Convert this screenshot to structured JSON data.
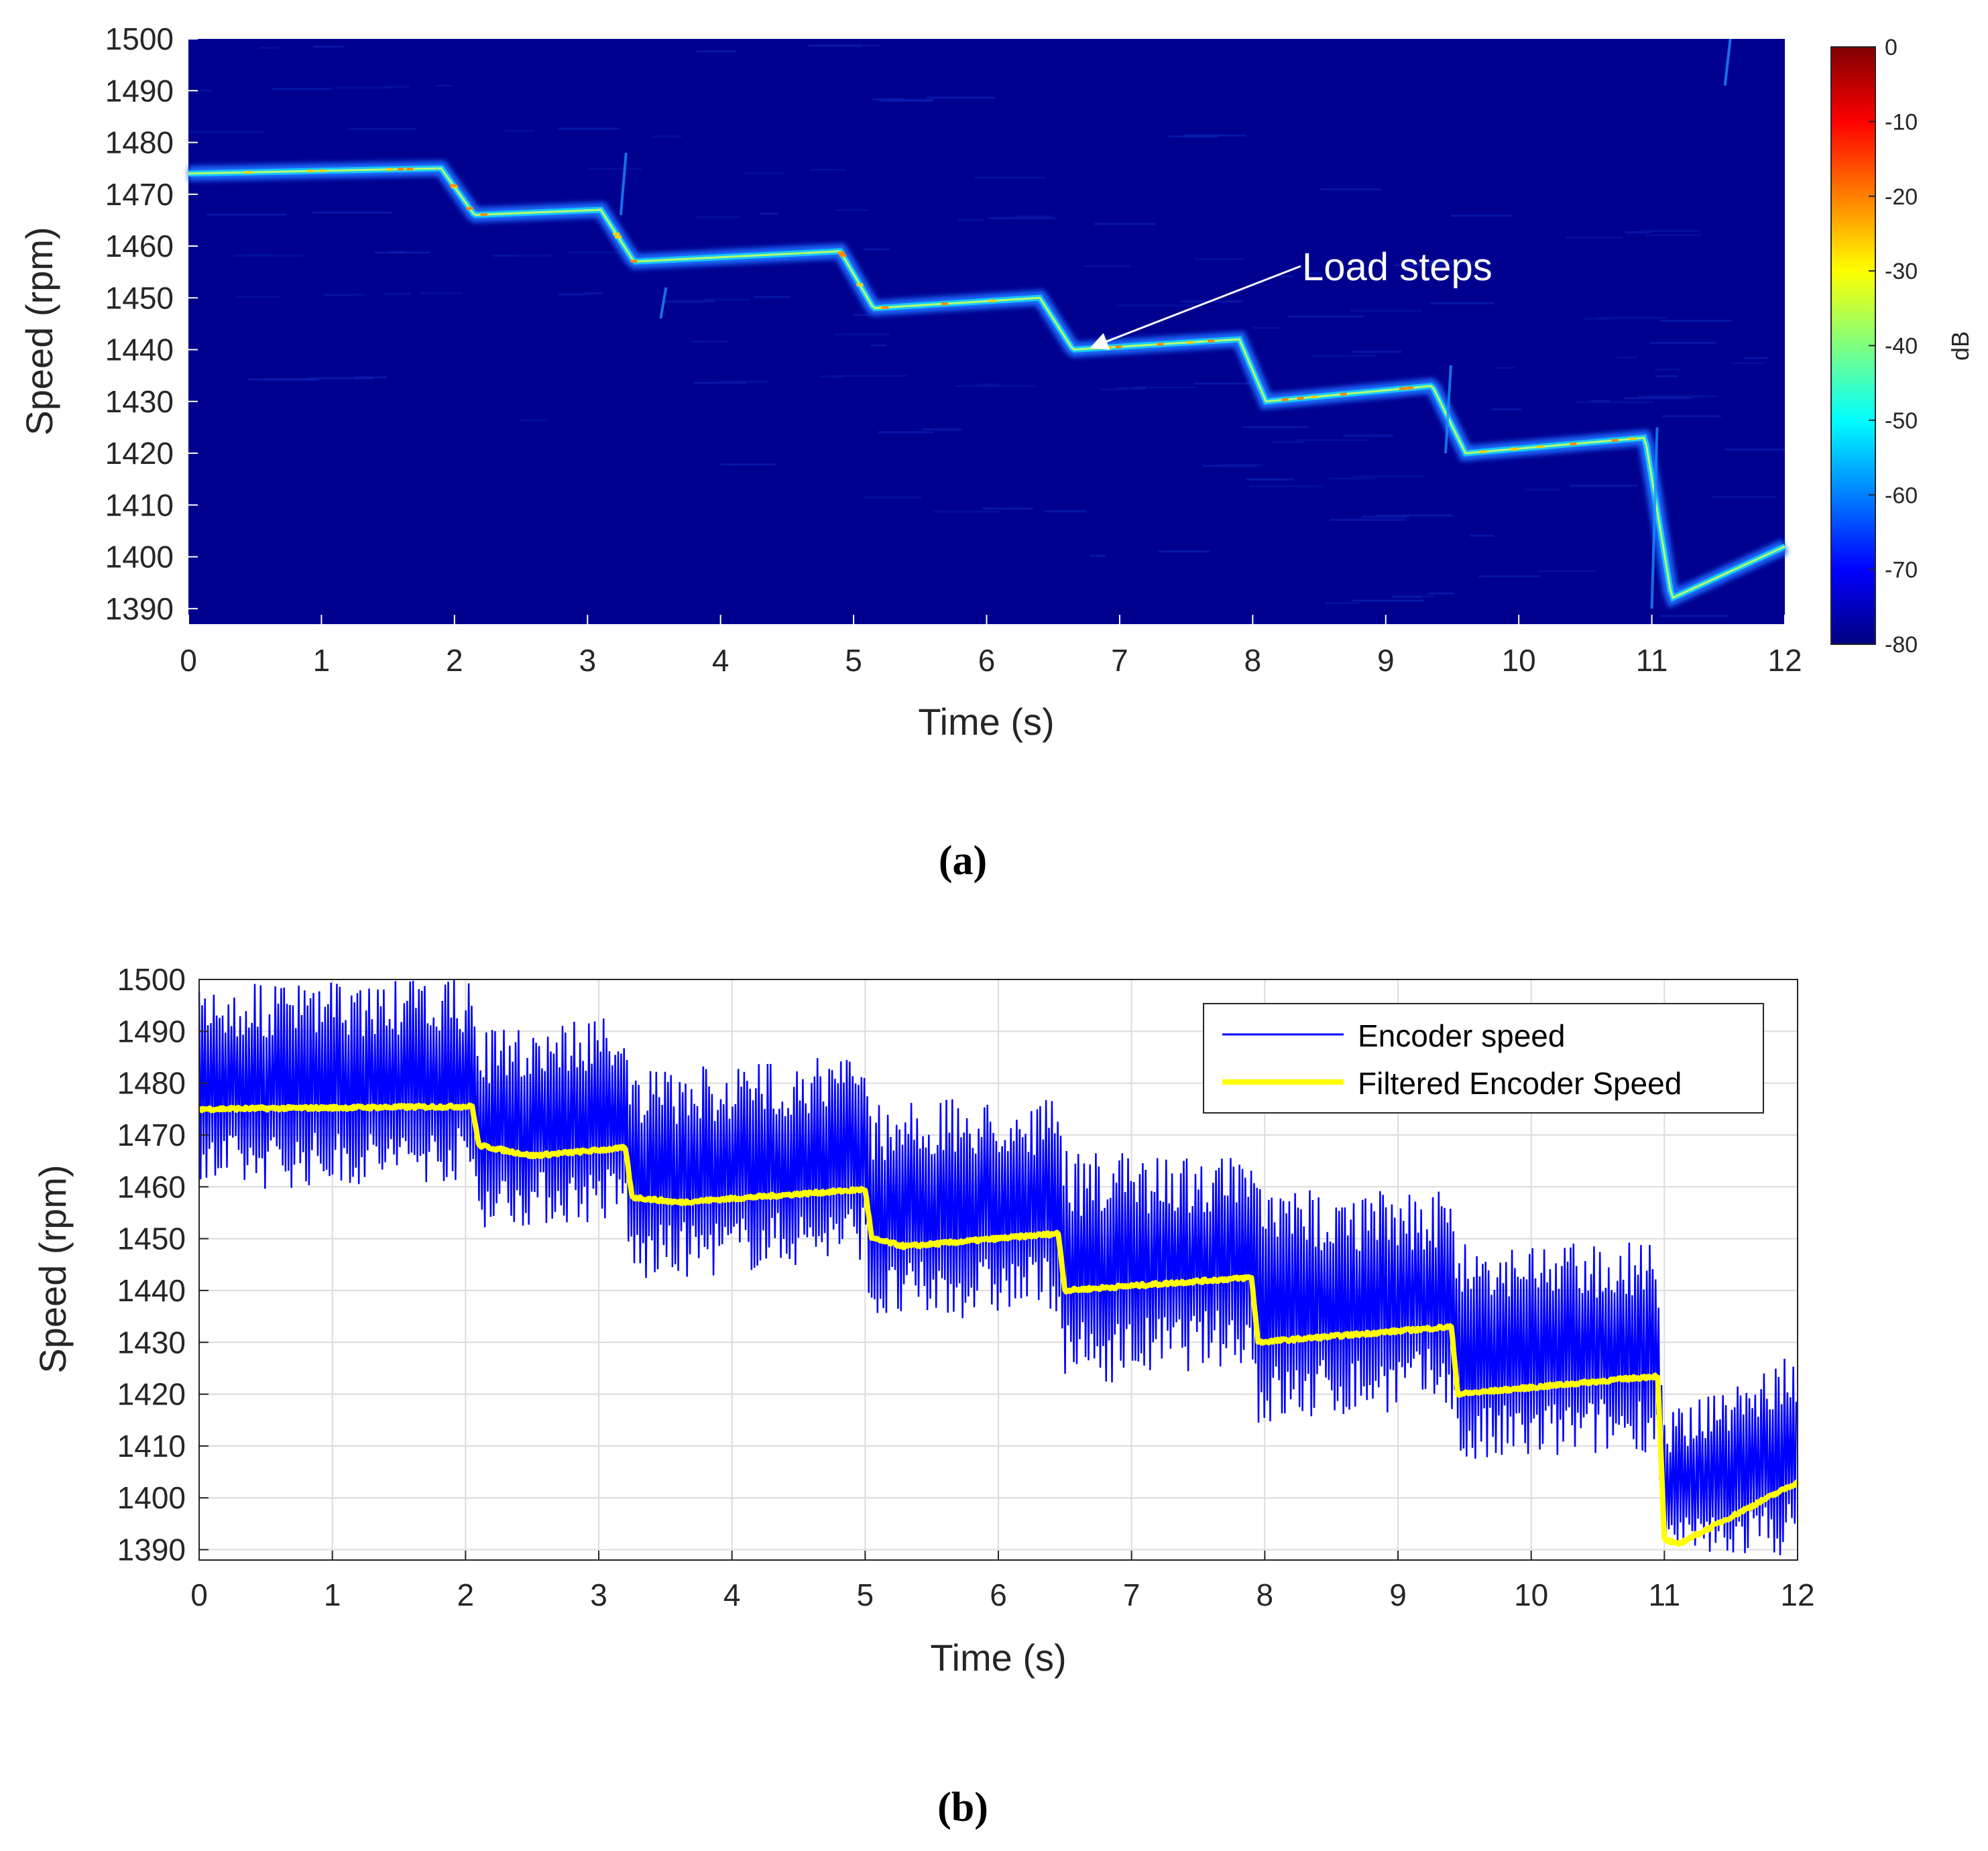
{
  "chart_data": [
    {
      "id": "a",
      "type": "heatmap",
      "subtype": "spectrogram",
      "panel_label": "(a)",
      "xlabel": "Time (s)",
      "ylabel": "Speed (rpm)",
      "xlim": [
        0,
        12
      ],
      "ylim": [
        1387,
        1500
      ],
      "xticks": [
        "0",
        "1",
        "2",
        "3",
        "4",
        "5",
        "6",
        "7",
        "8",
        "9",
        "10",
        "11",
        "12"
      ],
      "yticks": [
        "1500",
        "1490",
        "1480",
        "1470",
        "1460",
        "1450",
        "1440",
        "1430",
        "1420",
        "1410",
        "1400",
        "1390"
      ],
      "grid": false,
      "background_color": "#00008f",
      "colorbar": {
        "label": "dB",
        "range": [
          -80,
          0
        ],
        "ticks": [
          "0",
          "-10",
          "-20",
          "-30",
          "-40",
          "-50",
          "-60",
          "-70",
          "-80"
        ],
        "colormap": [
          "#00007f",
          "#0000ff",
          "#007fff",
          "#00ffff",
          "#7fff7f",
          "#ffff00",
          "#ff7f00",
          "#ff0000",
          "#7f0000"
        ]
      },
      "annotation": {
        "text": "Load steps",
        "points_to": [
          6.8,
          1441
        ]
      },
      "ridge": {
        "name": "speed ridge",
        "t": [
          0,
          1.9,
          2.15,
          3.1,
          3.35,
          4.9,
          5.15,
          6.4,
          6.65,
          7.9,
          8.1,
          9.35,
          9.6,
          10.95,
          11.15,
          12
        ],
        "rpm": [
          1474,
          1475,
          1466,
          1467,
          1457,
          1459,
          1448,
          1450,
          1440,
          1442,
          1430,
          1433,
          1420,
          1423,
          1392,
          1402
        ]
      }
    },
    {
      "id": "b",
      "type": "line",
      "panel_label": "(b)",
      "xlabel": "Time (s)",
      "ylabel": "Speed (rpm)",
      "xlim": [
        0,
        12
      ],
      "ylim": [
        1388,
        1500
      ],
      "xticks": [
        "0",
        "1",
        "2",
        "3",
        "4",
        "5",
        "6",
        "7",
        "8",
        "9",
        "10",
        "11",
        "12"
      ],
      "yticks": [
        "1500",
        "1490",
        "1480",
        "1470",
        "1460",
        "1450",
        "1440",
        "1430",
        "1420",
        "1410",
        "1400",
        "1390"
      ],
      "grid": true,
      "legend_position": "top-right",
      "series": [
        {
          "name": "Encoder speed",
          "color": "#0000ff",
          "description": "noisy encoder signal oscillating around the filtered speed",
          "envelope_t": [
            0,
            2.05,
            2.1,
            3.2,
            3.25,
            5.0,
            5.05,
            6.45,
            6.5,
            7.9,
            7.95,
            9.4,
            9.45,
            10.95,
            11.0,
            12
          ],
          "envelope_upper": [
            1499,
            1500,
            1490,
            1494,
            1482,
            1486,
            1477,
            1477,
            1467,
            1466,
            1460,
            1459,
            1450,
            1450,
            1416,
            1428
          ],
          "envelope_lower": [
            1459,
            1461,
            1452,
            1453,
            1441,
            1446,
            1433,
            1436,
            1421,
            1426,
            1413,
            1418,
            1405,
            1409,
            1388,
            1389
          ]
        },
        {
          "name": "Filtered Encoder Speed",
          "color": "#ffff00",
          "t": [
            0,
            2.05,
            2.1,
            2.5,
            3.2,
            3.25,
            3.6,
            5.0,
            5.05,
            5.3,
            6.45,
            6.5,
            7.9,
            7.95,
            9.4,
            9.45,
            10.95,
            11.0,
            11.1,
            12
          ],
          "rpm": [
            1475,
            1475.5,
            1468,
            1466,
            1467.5,
            1458,
            1457,
            1459.5,
            1450,
            1448.5,
            1451,
            1440,
            1442.5,
            1430,
            1433,
            1420,
            1423.5,
            1392,
            1391,
            1403
          ]
        }
      ]
    }
  ]
}
